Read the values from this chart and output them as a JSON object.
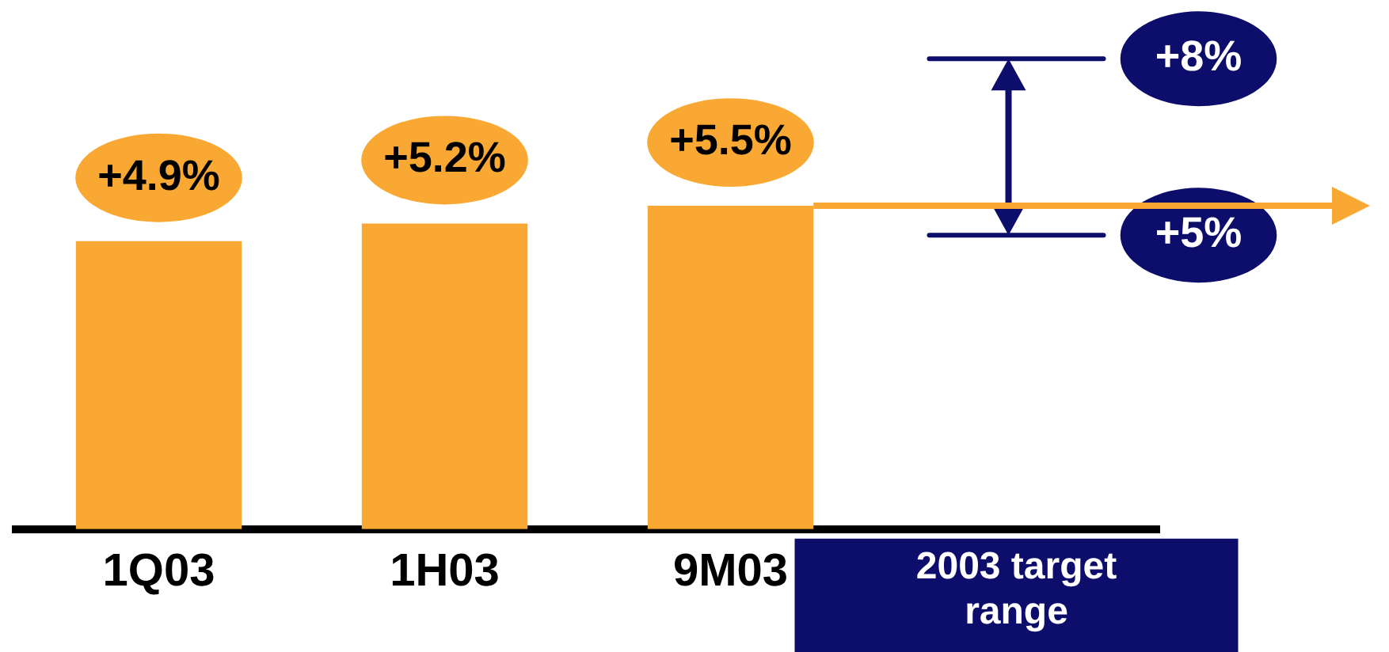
{
  "chart_data": {
    "type": "bar",
    "categories": [
      "1Q03",
      "1H03",
      "9M03",
      "2003 target range"
    ],
    "values": [
      4.9,
      5.2,
      5.5,
      null
    ],
    "value_labels": [
      "+4.9%",
      "+5.2%",
      "+5.5%",
      null
    ],
    "color": "#f9a933",
    "tick_labels": "x",
    "ref_lines": [
      {
        "axis": "y",
        "value": 8,
        "label": "+8%",
        "color": "#0d0d6b"
      },
      {
        "axis": "y",
        "value": 5,
        "label": "+5%",
        "color": "#0d0d6b"
      }
    ]
  }
}
